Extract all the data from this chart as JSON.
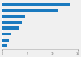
{
  "values": [
    13.5,
    11.0,
    4.5,
    3.8,
    3.2,
    1.8,
    1.3,
    1.0
  ],
  "bar_color": "#1a7abf",
  "background_color": "#f0f0f0",
  "plot_bg_color": "#f0f0f0",
  "grid_color": "#ffffff",
  "xlim": [
    0,
    15
  ],
  "bar_height": 0.5,
  "n_bars": 8
}
